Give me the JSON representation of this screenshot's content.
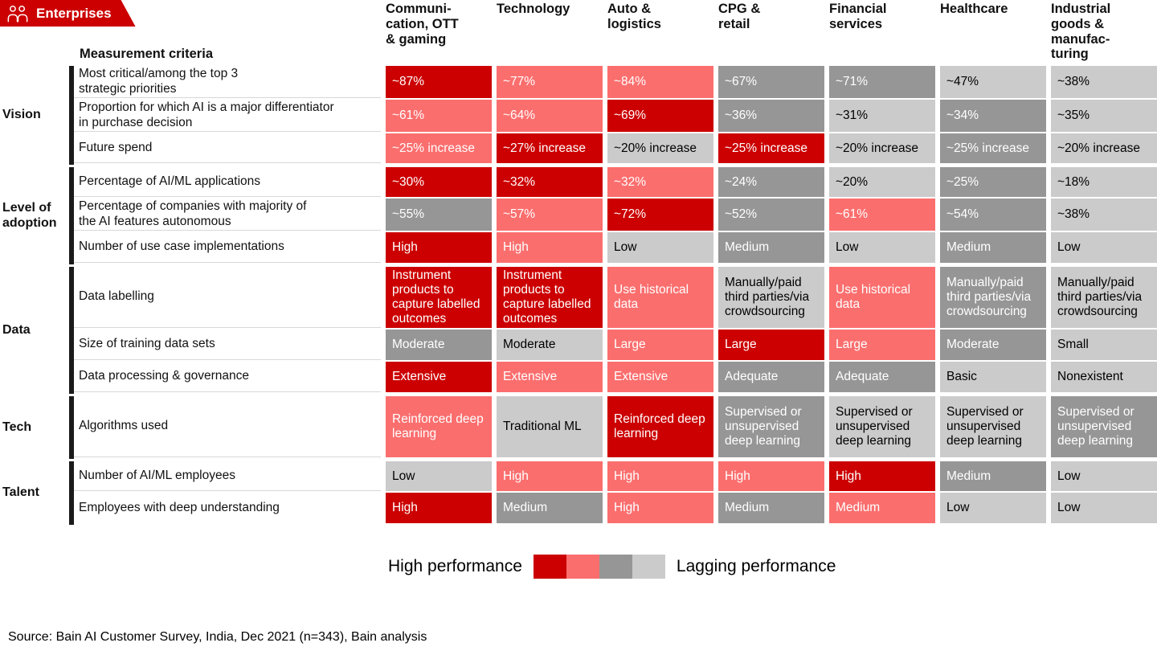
{
  "badge": {
    "label": "Enterprises",
    "icon": "people-group-icon",
    "color": "#cc0000"
  },
  "source": "Source: Bain AI Customer Survey, India, Dec 2021 (n=343), Bain analysis",
  "chart_data": {
    "type": "heatmap",
    "criteria_header": "Measurement criteria",
    "columns": [
      "Communi-\ncation, OTT\n& gaming",
      "Technology",
      "Auto &\nlogistics",
      "CPG &\nretail",
      "Financial\nservices",
      "Healthcare",
      "Industrial\ngoods &\nmanufac-\nturing"
    ],
    "tone_colors": {
      "red": "#cc0000",
      "pink": "#fb6e6e",
      "dark-gray": "#969696",
      "light-gray": "#cbcbcb"
    },
    "tone_meaning": {
      "red": "high performance",
      "pink": "mid-high performance",
      "dark-gray": "mid-low performance",
      "light-gray": "lagging performance"
    },
    "legend": {
      "left_label": "High performance",
      "right_label": "Lagging performance",
      "scale_tones": [
        "red",
        "pink",
        "dark-gray",
        "light-gray"
      ]
    },
    "groups": [
      {
        "label": "Vision",
        "rows": [
          {
            "criteria": "Most critical/among the top 3\nstrategic priorities",
            "cells": [
              {
                "value": "~87%",
                "tone": "red"
              },
              {
                "value": "~77%",
                "tone": "pink"
              },
              {
                "value": "~84%",
                "tone": "pink"
              },
              {
                "value": "~67%",
                "tone": "dark-gray"
              },
              {
                "value": "~71%",
                "tone": "dark-gray"
              },
              {
                "value": "~47%",
                "tone": "light-gray"
              },
              {
                "value": "~38%",
                "tone": "light-gray"
              }
            ]
          },
          {
            "criteria": "Proportion for which AI is a major differentiator\nin purchase decision",
            "cells": [
              {
                "value": "~61%",
                "tone": "pink"
              },
              {
                "value": "~64%",
                "tone": "pink"
              },
              {
                "value": "~69%",
                "tone": "red"
              },
              {
                "value": "~36%",
                "tone": "dark-gray"
              },
              {
                "value": "~31%",
                "tone": "light-gray"
              },
              {
                "value": "~34%",
                "tone": "dark-gray"
              },
              {
                "value": "~35%",
                "tone": "light-gray"
              }
            ]
          },
          {
            "criteria": "Future spend",
            "cells": [
              {
                "value": "~25% increase",
                "tone": "pink"
              },
              {
                "value": "~27% increase",
                "tone": "red"
              },
              {
                "value": "~20% increase",
                "tone": "light-gray"
              },
              {
                "value": "~25% increase",
                "tone": "red"
              },
              {
                "value": "~20% increase",
                "tone": "light-gray"
              },
              {
                "value": "~25% increase",
                "tone": "dark-gray"
              },
              {
                "value": "~20% increase",
                "tone": "light-gray"
              }
            ]
          }
        ]
      },
      {
        "label": "Level of\nadoption",
        "rows": [
          {
            "criteria": "Percentage of AI/ML applications",
            "cells": [
              {
                "value": "~30%",
                "tone": "red"
              },
              {
                "value": "~32%",
                "tone": "red"
              },
              {
                "value": "~32%",
                "tone": "pink"
              },
              {
                "value": "~24%",
                "tone": "dark-gray"
              },
              {
                "value": "~20%",
                "tone": "light-gray"
              },
              {
                "value": "~25%",
                "tone": "dark-gray"
              },
              {
                "value": "~18%",
                "tone": "light-gray"
              }
            ]
          },
          {
            "criteria": "Percentage of companies with majority of\nthe AI features autonomous",
            "cells": [
              {
                "value": "~55%",
                "tone": "dark-gray"
              },
              {
                "value": "~57%",
                "tone": "pink"
              },
              {
                "value": "~72%",
                "tone": "red"
              },
              {
                "value": "~52%",
                "tone": "dark-gray"
              },
              {
                "value": "~61%",
                "tone": "pink"
              },
              {
                "value": "~54%",
                "tone": "dark-gray"
              },
              {
                "value": "~38%",
                "tone": "light-gray"
              }
            ]
          },
          {
            "criteria": "Number of use case implementations",
            "cells": [
              {
                "value": "High",
                "tone": "red"
              },
              {
                "value": "High",
                "tone": "pink"
              },
              {
                "value": "Low",
                "tone": "light-gray"
              },
              {
                "value": "Medium",
                "tone": "dark-gray"
              },
              {
                "value": "Low",
                "tone": "light-gray"
              },
              {
                "value": "Medium",
                "tone": "dark-gray"
              },
              {
                "value": "Low",
                "tone": "light-gray"
              }
            ]
          }
        ]
      },
      {
        "label": "Data",
        "rows": [
          {
            "criteria": "Data labelling",
            "cells": [
              {
                "value": "Instrument products to capture labelled outcomes",
                "tone": "red"
              },
              {
                "value": "Instrument products to capture labelled outcomes",
                "tone": "red"
              },
              {
                "value": "Use historical data",
                "tone": "pink"
              },
              {
                "value": "Manually/paid third parties/via crowdsourcing",
                "tone": "light-gray"
              },
              {
                "value": "Use historical data",
                "tone": "pink"
              },
              {
                "value": "Manually/paid third parties/via crowdsourcing",
                "tone": "dark-gray"
              },
              {
                "value": "Manually/paid third parties/via crowdsourcing",
                "tone": "light-gray"
              }
            ]
          },
          {
            "criteria": "Size of training data sets",
            "cells": [
              {
                "value": "Moderate",
                "tone": "dark-gray"
              },
              {
                "value": "Moderate",
                "tone": "light-gray"
              },
              {
                "value": "Large",
                "tone": "pink"
              },
              {
                "value": "Large",
                "tone": "red"
              },
              {
                "value": "Large",
                "tone": "pink"
              },
              {
                "value": "Moderate",
                "tone": "dark-gray"
              },
              {
                "value": "Small",
                "tone": "light-gray"
              }
            ]
          },
          {
            "criteria": "Data processing & governance",
            "cells": [
              {
                "value": "Extensive",
                "tone": "red"
              },
              {
                "value": "Extensive",
                "tone": "pink"
              },
              {
                "value": "Extensive",
                "tone": "pink"
              },
              {
                "value": "Adequate",
                "tone": "dark-gray"
              },
              {
                "value": "Adequate",
                "tone": "dark-gray"
              },
              {
                "value": "Basic",
                "tone": "light-gray"
              },
              {
                "value": "Nonexistent",
                "tone": "light-gray"
              }
            ]
          }
        ]
      },
      {
        "label": "Tech",
        "rows": [
          {
            "criteria": "Algorithms used",
            "cells": [
              {
                "value": "Reinforced deep learning",
                "tone": "pink"
              },
              {
                "value": "Traditional ML",
                "tone": "light-gray"
              },
              {
                "value": "Reinforced deep learning",
                "tone": "red"
              },
              {
                "value": "Supervised or unsupervised deep learning",
                "tone": "dark-gray"
              },
              {
                "value": "Supervised or unsupervised deep learning",
                "tone": "light-gray"
              },
              {
                "value": "Supervised or unsupervised deep learning",
                "tone": "light-gray"
              },
              {
                "value": "Supervised or unsupervised deep learning",
                "tone": "dark-gray"
              }
            ]
          }
        ]
      },
      {
        "label": "Talent",
        "rows": [
          {
            "criteria": "Number of AI/ML employees",
            "cells": [
              {
                "value": "Low",
                "tone": "light-gray"
              },
              {
                "value": "High",
                "tone": "pink"
              },
              {
                "value": "High",
                "tone": "pink"
              },
              {
                "value": "High",
                "tone": "pink"
              },
              {
                "value": "High",
                "tone": "red"
              },
              {
                "value": "Medium",
                "tone": "dark-gray"
              },
              {
                "value": "Low",
                "tone": "light-gray"
              }
            ]
          },
          {
            "criteria": "Employees with deep understanding",
            "cells": [
              {
                "value": "High",
                "tone": "red"
              },
              {
                "value": "Medium",
                "tone": "dark-gray"
              },
              {
                "value": "High",
                "tone": "pink"
              },
              {
                "value": "Medium",
                "tone": "dark-gray"
              },
              {
                "value": "Medium",
                "tone": "pink"
              },
              {
                "value": "Low",
                "tone": "light-gray"
              },
              {
                "value": "Low",
                "tone": "light-gray"
              }
            ]
          }
        ]
      }
    ]
  }
}
